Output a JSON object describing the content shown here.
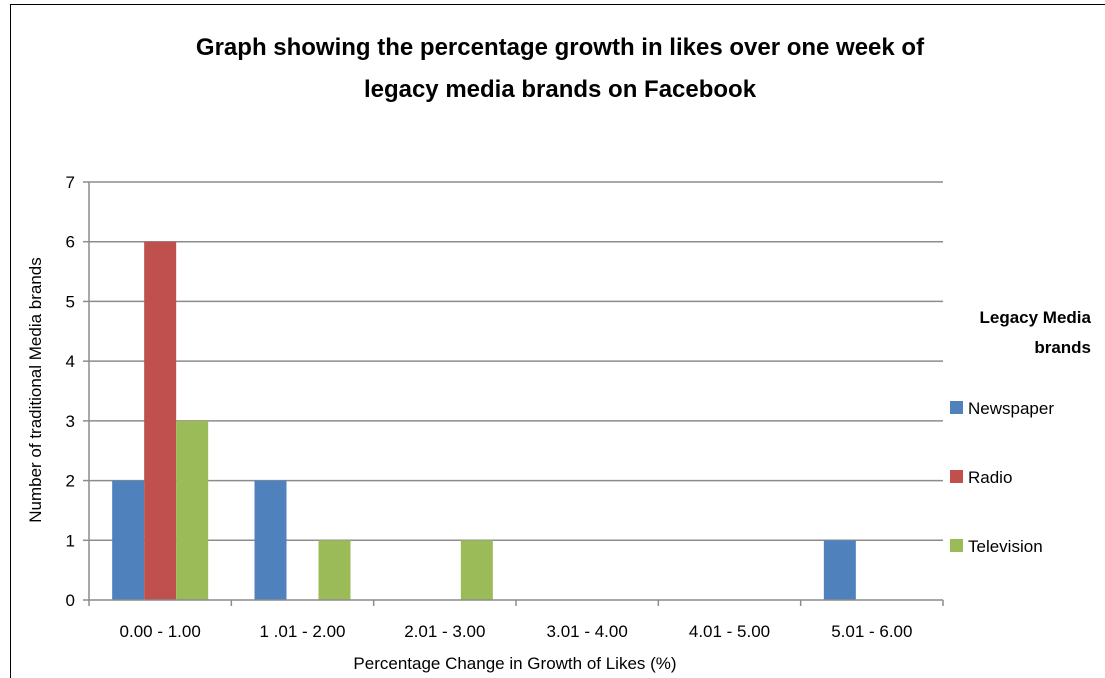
{
  "chart_data": {
    "type": "bar",
    "title_lines": [
      "Graph showing the percentage growth in likes over one week of",
      "legacy media brands on Facebook"
    ],
    "xlabel": "Percentage Change in Growth of Likes  (%)",
    "ylabel": "Number of traditional Media brands",
    "categories": [
      "0.00 - 1.00",
      "1 .01 - 2.00",
      "2.01 - 3.00",
      "3.01 - 4.00",
      "4.01 - 5.00",
      "5.01 - 6.00"
    ],
    "ylim": [
      0,
      7
    ],
    "yticks": [
      0,
      1,
      2,
      3,
      4,
      5,
      6,
      7
    ],
    "grid": true,
    "legend": {
      "title_lines": [
        "Legacy Media",
        "brands"
      ],
      "placement": "right"
    },
    "series": [
      {
        "name": "Newspaper",
        "color": "#4F81BD",
        "values": [
          2,
          2,
          0,
          0,
          0,
          1
        ]
      },
      {
        "name": "Radio",
        "color": "#C0504D",
        "values": [
          6,
          0,
          0,
          0,
          0,
          0
        ]
      },
      {
        "name": "Television",
        "color": "#9BBB59",
        "values": [
          3,
          1,
          1,
          0,
          0,
          0
        ]
      }
    ]
  }
}
